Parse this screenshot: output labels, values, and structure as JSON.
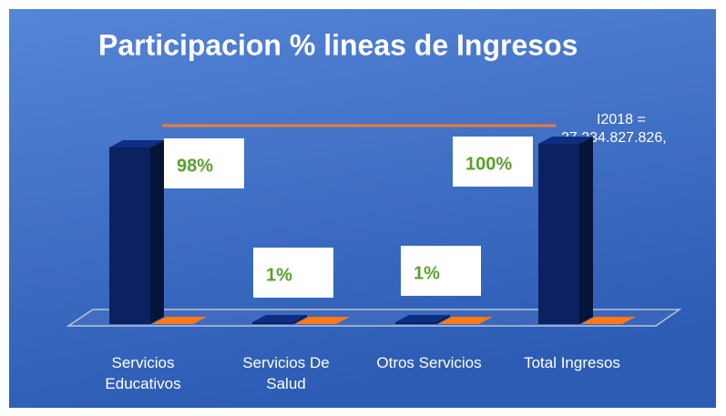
{
  "chart_data": {
    "type": "bar3d",
    "title": "Participacion % lineas de Ingresos",
    "categories": [
      "Servicios Educativos",
      "Servicios De Salud",
      "Otros Servicios",
      "Total Ingresos"
    ],
    "series": [
      {
        "color": "#0b2160",
        "values": [
          98,
          1,
          1,
          100
        ],
        "value_labels": [
          "98%",
          "1%",
          "1%",
          "100%"
        ]
      },
      {
        "color": "#c55a11",
        "values": [
          0,
          0,
          0,
          0
        ]
      },
      {
        "type": "line",
        "color": "#ed7d31",
        "values": [
          100,
          100,
          100,
          100
        ]
      }
    ],
    "annotation": [
      "I2018 =",
      "27.234.827.826,"
    ],
    "ylim": [
      0,
      100
    ]
  }
}
